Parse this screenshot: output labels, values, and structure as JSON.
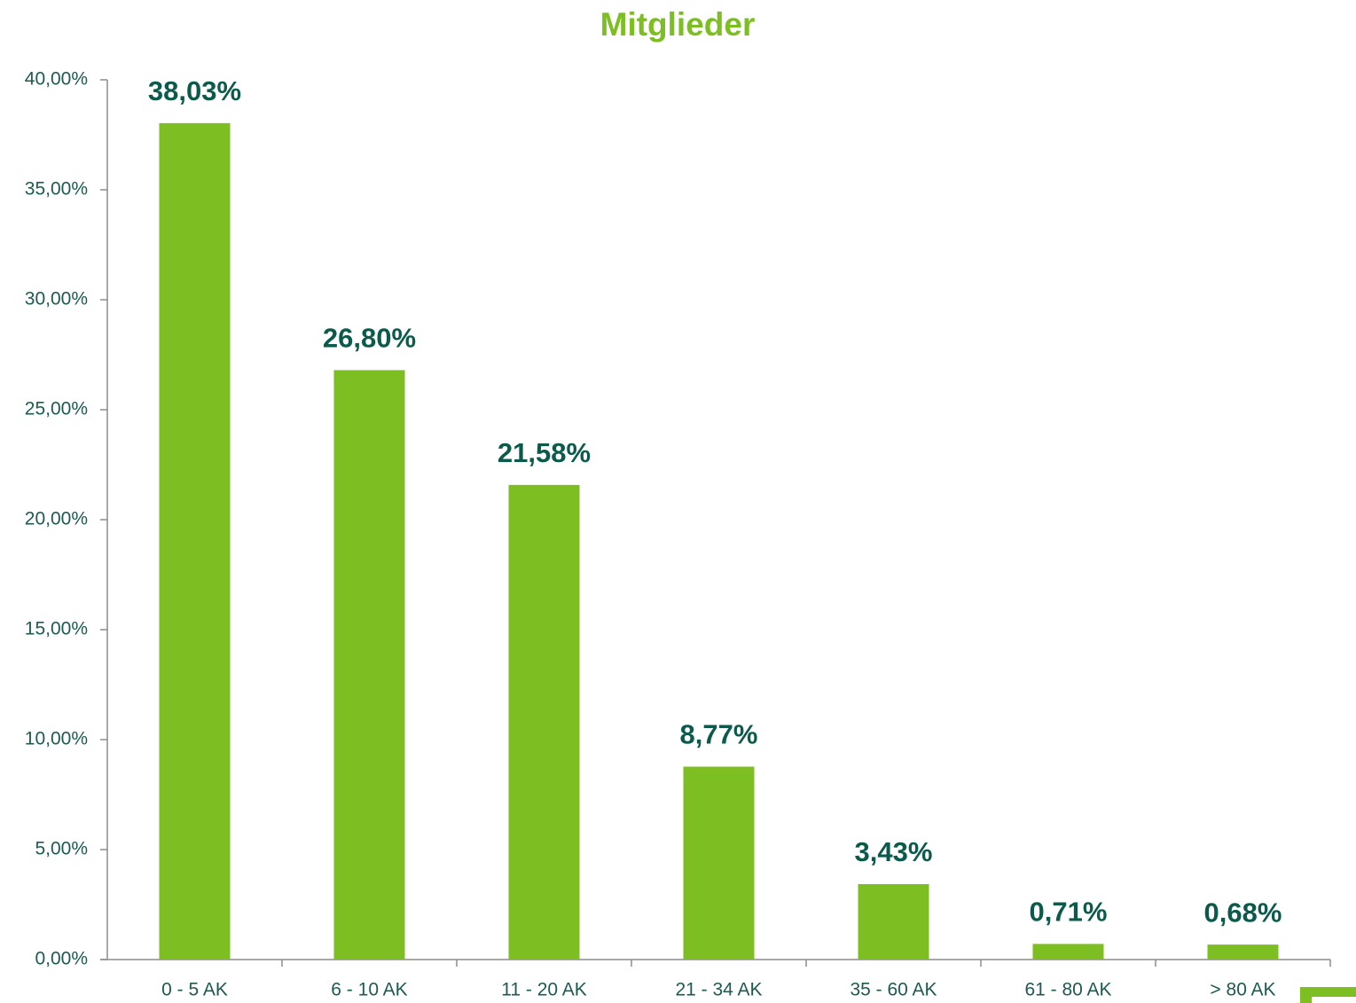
{
  "chart_data": {
    "type": "bar",
    "title": "Mitglieder",
    "categories": [
      "0 - 5 AK",
      "6 - 10 AK",
      "11 - 20 AK",
      "21 - 34 AK",
      "35 - 60 AK",
      "61 - 80 AK",
      "> 80 AK"
    ],
    "values": [
      38.03,
      26.8,
      21.58,
      8.77,
      3.43,
      0.71,
      0.68
    ],
    "value_labels": [
      "38,03%",
      "26,80%",
      "21,58%",
      "8,77%",
      "3,43%",
      "0,71%",
      "0,68%"
    ],
    "color": "#7dbe22",
    "ylim": [
      0,
      40
    ],
    "yticks": [
      {
        "value": 0,
        "label": "0,00%"
      },
      {
        "value": 5,
        "label": "5,00%"
      },
      {
        "value": 10,
        "label": "10,00%"
      },
      {
        "value": 15,
        "label": "15,00%"
      },
      {
        "value": 20,
        "label": "20,00%"
      },
      {
        "value": 25,
        "label": "25,00%"
      },
      {
        "value": 30,
        "label": "30,00%"
      },
      {
        "value": 35,
        "label": "35,00%"
      },
      {
        "value": 40,
        "label": "40,00%"
      }
    ],
    "grid": false
  }
}
